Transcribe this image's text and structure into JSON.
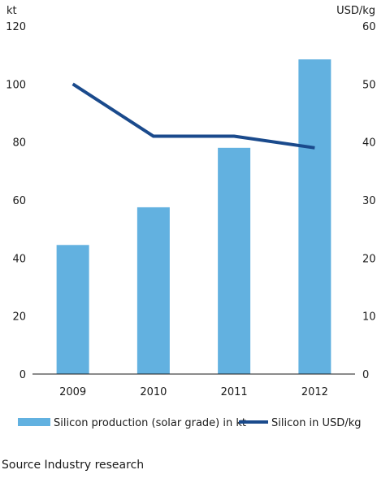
{
  "chart_data": {
    "type": "bar+line",
    "categories": [
      "2009",
      "2010",
      "2011",
      "2012"
    ],
    "series": [
      {
        "name": "Silicon production (solar grade) in kt",
        "type": "bar",
        "axis": "left",
        "values": [
          44.5,
          57.5,
          78,
          108.5
        ],
        "color": "#62b1e0"
      },
      {
        "name": "Silicon in USD/kg",
        "type": "line",
        "axis": "right",
        "values": [
          50,
          41,
          41,
          39
        ],
        "color": "#1a4a8c"
      }
    ],
    "y_left": {
      "label": "kt",
      "min": 0,
      "max": 120,
      "ticks": [
        "0",
        "20",
        "40",
        "60",
        "80",
        "100",
        "120"
      ]
    },
    "y_right": {
      "label": "USD/kg",
      "min": 0,
      "max": 60,
      "ticks": [
        "0",
        "10",
        "20",
        "30",
        "40",
        "50",
        "60"
      ]
    },
    "grid": false,
    "legend": "bottom"
  },
  "source": "Source Industry research"
}
